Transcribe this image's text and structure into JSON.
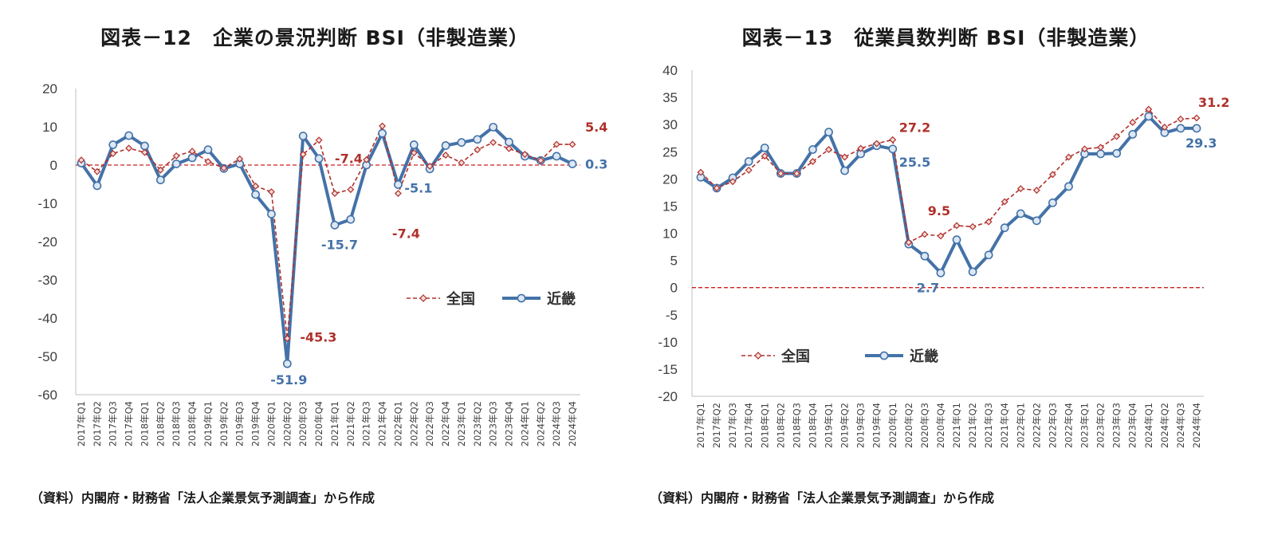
{
  "source_label": "（資料）内閣府・財務省「法人企業景気予測調査」から作成",
  "colors": {
    "national": "#b0302a",
    "kinki": "#4472a8",
    "marker_fill": "#dde8f4",
    "zero_line": "#cc2020",
    "axis": "#bfbfbf"
  },
  "legend": {
    "national": "全国",
    "kinki": "近畿"
  },
  "chart_data": [
    {
      "type": "line",
      "title": "図表－12　企業の景況判断 BSI（非製造業）",
      "categories": [
        "2017年Q1",
        "2017年Q2",
        "2017年Q3",
        "2017年Q4",
        "2018年Q1",
        "2018年Q2",
        "2018年Q3",
        "2018年Q4",
        "2019年Q1",
        "2019年Q2",
        "2019年Q3",
        "2019年Q4",
        "2020年Q1",
        "2020年Q2",
        "2020年Q3",
        "2020年Q4",
        "2021年Q1",
        "2021年Q2",
        "2021年Q3",
        "2021年Q4",
        "2022年Q1",
        "2022年Q2",
        "2022年Q3",
        "2022年Q4",
        "2023年Q1",
        "2023年Q2",
        "2023年Q3",
        "2023年Q4",
        "2024年Q1",
        "2024年Q2",
        "2024年Q3",
        "2024年Q4"
      ],
      "ylim": [
        -60,
        20
      ],
      "yticks": [
        20,
        10,
        0,
        -10,
        -20,
        -30,
        -40,
        -50,
        -60
      ],
      "legend_position": "center-right",
      "series": [
        {
          "name": "全国",
          "values": [
            1.3,
            -1.7,
            3.0,
            4.4,
            3.3,
            -1.3,
            2.4,
            3.6,
            0.9,
            -0.8,
            1.6,
            -5.5,
            -7.0,
            -45.3,
            2.8,
            6.5,
            -7.4,
            -6.4,
            1.4,
            10.2,
            -7.4,
            3.2,
            -0.3,
            2.6,
            0.6,
            4.0,
            5.9,
            4.3,
            2.8,
            1.2,
            5.4,
            5.4
          ]
        },
        {
          "name": "近畿",
          "values": [
            0.5,
            -5.4,
            5.3,
            7.7,
            5.0,
            -3.9,
            0.3,
            1.9,
            4.0,
            -0.9,
            0.3,
            -7.7,
            -12.8,
            -51.9,
            7.6,
            1.7,
            -15.7,
            -14.2,
            0.0,
            8.3,
            -5.1,
            5.3,
            -1.0,
            5.1,
            5.9,
            6.7,
            9.9,
            6.0,
            2.3,
            1.2,
            2.3,
            0.3
          ]
        }
      ],
      "annotations": [
        {
          "text": "5.4",
          "series": "全国",
          "index": 31
        },
        {
          "text": "0.3",
          "series": "近畿",
          "index": 31
        },
        {
          "text": "-7.4",
          "series": "全国",
          "index": 16
        },
        {
          "text": "-7.4",
          "series": "全国",
          "index": 20
        },
        {
          "text": "-5.1",
          "series": "近畿",
          "index": 20
        },
        {
          "text": "-15.7",
          "series": "近畿",
          "index": 16
        },
        {
          "text": "-45.3",
          "series": "全国",
          "index": 13
        },
        {
          "text": "-51.9",
          "series": "近畿",
          "index": 13
        }
      ]
    },
    {
      "type": "line",
      "title": "図表－13　従業員数判断 BSI（非製造業）",
      "categories": [
        "2017年Q1",
        "2017年Q2",
        "2017年Q3",
        "2017年Q4",
        "2018年Q1",
        "2018年Q2",
        "2018年Q3",
        "2018年Q4",
        "2019年Q1",
        "2019年Q2",
        "2019年Q3",
        "2019年Q4",
        "2020年Q1",
        "2020年Q2",
        "2020年Q3",
        "2020年Q4",
        "2021年Q1",
        "2021年Q2",
        "2021年Q3",
        "2021年Q4",
        "2022年Q1",
        "2022年Q2",
        "2022年Q3",
        "2022年Q4",
        "2023年Q1",
        "2023年Q2",
        "2023年Q3",
        "2023年Q4",
        "2024年Q1",
        "2024年Q2",
        "2024年Q3",
        "2024年Q4"
      ],
      "ylim": [
        -20,
        40
      ],
      "yticks": [
        40,
        35,
        30,
        25,
        20,
        15,
        10,
        5,
        0,
        -5,
        -10,
        -15,
        -20
      ],
      "legend_position": "lower-left",
      "series": [
        {
          "name": "全国",
          "values": [
            21.2,
            18.3,
            19.5,
            21.6,
            24.2,
            21.0,
            21.0,
            23.2,
            25.4,
            24.0,
            25.6,
            26.5,
            27.2,
            8.3,
            9.8,
            9.5,
            11.4,
            11.2,
            12.1,
            15.8,
            18.2,
            17.9,
            20.8,
            24.0,
            25.5,
            25.8,
            27.8,
            30.4,
            32.8,
            29.5,
            31.0,
            31.2
          ]
        },
        {
          "name": "近畿",
          "values": [
            20.3,
            18.3,
            20.2,
            23.2,
            25.7,
            21.0,
            21.0,
            25.4,
            28.6,
            21.5,
            24.6,
            26.1,
            25.5,
            8.0,
            5.8,
            2.7,
            8.8,
            2.9,
            6.0,
            11.0,
            13.6,
            12.3,
            15.6,
            18.6,
            24.6,
            24.6,
            24.7,
            28.2,
            31.5,
            28.5,
            29.3,
            29.3
          ]
        }
      ],
      "annotations": [
        {
          "text": "27.2",
          "series": "全国",
          "index": 12
        },
        {
          "text": "25.5",
          "series": "近畿",
          "index": 12
        },
        {
          "text": "9.5",
          "series": "全国",
          "index": 15
        },
        {
          "text": "2.7",
          "series": "近畿",
          "index": 15
        },
        {
          "text": "31.2",
          "series": "全国",
          "index": 31
        },
        {
          "text": "29.3",
          "series": "近畿",
          "index": 31
        }
      ]
    }
  ]
}
